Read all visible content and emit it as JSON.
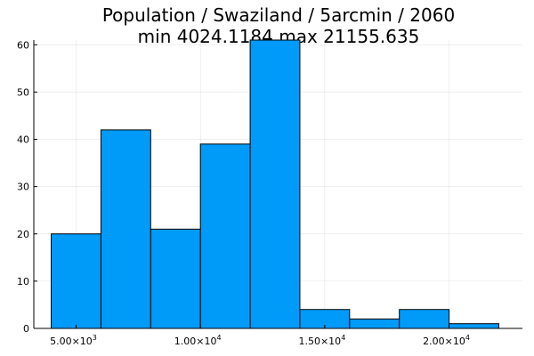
{
  "chart_data": {
    "type": "bar",
    "title": "Population / Swaziland / 5arcmin / 2060",
    "subtitle": "min 4024.1184  max 21155.635",
    "xlabel": "",
    "ylabel": "",
    "bin_edges": [
      4000,
      6000,
      8000,
      10000,
      12000,
      14000,
      16000,
      18000,
      20000,
      22000
    ],
    "values": [
      20,
      42,
      21,
      39,
      61,
      4,
      2,
      4,
      1
    ],
    "xlim": [
      3300,
      22950
    ],
    "ylim": [
      0,
      61
    ],
    "x_ticks": [
      {
        "value": 5000,
        "mantissa": "5.00×10",
        "exp": "3"
      },
      {
        "value": 10000,
        "mantissa": "1.00×10",
        "exp": "4"
      },
      {
        "value": 15000,
        "mantissa": "1.50×10",
        "exp": "4"
      },
      {
        "value": 20000,
        "mantissa": "2.00×10",
        "exp": "4"
      }
    ],
    "y_ticks": [
      0,
      10,
      20,
      30,
      40,
      50,
      60
    ],
    "grid": true,
    "legend": "none",
    "bar_color": "#009af9"
  }
}
